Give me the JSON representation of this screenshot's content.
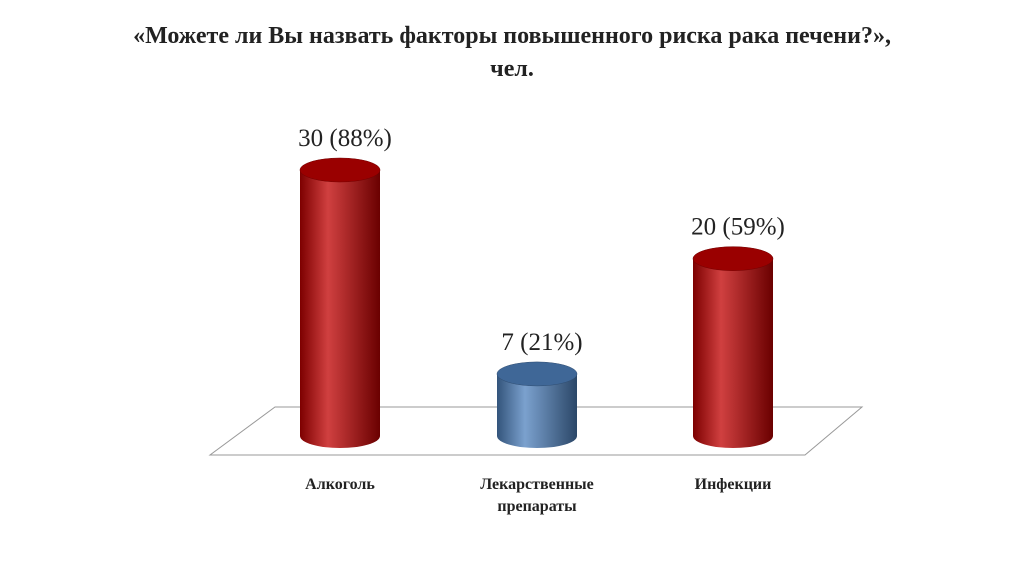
{
  "chart_data": {
    "type": "bar3d",
    "title": "«Можете ли Вы назвать факторы повышенного риска рака печени?», чел.",
    "categories": [
      "Алкоголь",
      "Лекарственные препараты",
      "Инфекции"
    ],
    "values": [
      30,
      7,
      20
    ],
    "value_labels": [
      "30 (88%)",
      "7 (21%)",
      "20 (59%)"
    ],
    "colors": [
      "#c00000",
      "#4f81bd",
      "#c00000"
    ]
  }
}
